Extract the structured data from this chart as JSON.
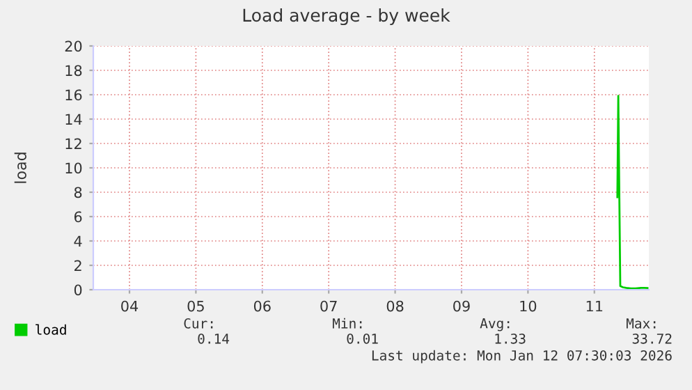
{
  "chart_data": {
    "type": "line",
    "title": "Load average - by week",
    "ylabel": "load",
    "xlim": [
      3.955,
      12.32
    ],
    "xticks": [
      {
        "value": 4.5,
        "label": "04"
      },
      {
        "value": 5.5,
        "label": "05"
      },
      {
        "value": 6.5,
        "label": "06"
      },
      {
        "value": 7.5,
        "label": "07"
      },
      {
        "value": 8.5,
        "label": "08"
      },
      {
        "value": 9.5,
        "label": "09"
      },
      {
        "value": 10.5,
        "label": "10"
      },
      {
        "value": 11.5,
        "label": "11"
      }
    ],
    "ylim": [
      0,
      20
    ],
    "yticks": [
      0,
      2,
      4,
      6,
      8,
      10,
      12,
      14,
      16,
      18,
      20
    ],
    "grid": true,
    "legend": "bottom left",
    "series": [
      {
        "name": "load",
        "color": "#00cc00",
        "x": [
          11.846,
          11.86,
          11.89,
          11.93,
          11.98,
          12.05,
          12.12,
          12.2,
          12.25,
          12.3
        ],
        "values": [
          7.6,
          15.9,
          0.3,
          0.2,
          0.15,
          0.1,
          0.1,
          0.15,
          0.15,
          0.14
        ]
      }
    ],
    "annotations": [
      "Cur:",
      "Min:",
      "Avg:",
      "Max:",
      "0.14",
      "0.01",
      "1.33",
      "33.72",
      "Last update: Mon Jan 12 07:30:03 2026"
    ]
  }
}
